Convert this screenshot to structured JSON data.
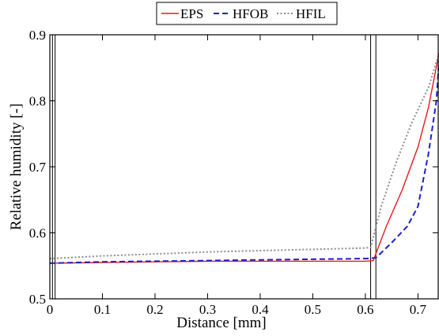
{
  "chart_data": {
    "type": "line",
    "title": "",
    "xlabel": "Distance [mm]",
    "ylabel": "Relative humidity [-]",
    "xlim": [
      0,
      0.74
    ],
    "ylim": [
      0.5,
      0.9
    ],
    "xticks": [
      0,
      0.1,
      0.2,
      0.3,
      0.4,
      0.5,
      0.6,
      0.7
    ],
    "xtick_labels": [
      "0",
      "0.1",
      "0.2",
      "0.3",
      "0.4",
      "0.5",
      "0.6",
      "0.7"
    ],
    "yticks": [
      0.5,
      0.6,
      0.7,
      0.8,
      0.9
    ],
    "ytick_labels": [
      "0.5",
      "0.6",
      "0.7",
      "0.8",
      "0.9"
    ],
    "grid": false,
    "legend_position": "top-center",
    "vertical_lines": [
      0.005,
      0.01,
      0.61,
      0.62
    ],
    "series": [
      {
        "name": "EPS",
        "color": "#e8191f",
        "style": "solid",
        "x": [
          0,
          0.1,
          0.2,
          0.3,
          0.4,
          0.5,
          0.6,
          0.615,
          0.64,
          0.67,
          0.7,
          0.72,
          0.74
        ],
        "y": [
          0.554,
          0.555,
          0.556,
          0.557,
          0.557,
          0.557,
          0.557,
          0.558,
          0.61,
          0.665,
          0.73,
          0.79,
          0.872
        ]
      },
      {
        "name": "HFOB",
        "color": "#1f1fc8",
        "style": "dashed",
        "x": [
          0,
          0.1,
          0.2,
          0.3,
          0.4,
          0.5,
          0.6,
          0.62,
          0.65,
          0.68,
          0.7,
          0.72,
          0.735,
          0.74
        ],
        "y": [
          0.554,
          0.556,
          0.557,
          0.558,
          0.559,
          0.56,
          0.561,
          0.562,
          0.585,
          0.61,
          0.64,
          0.72,
          0.8,
          0.86
        ]
      },
      {
        "name": "HFIL",
        "color": "#8c8c8c",
        "style": "dotted",
        "x": [
          0,
          0.1,
          0.2,
          0.3,
          0.4,
          0.5,
          0.6,
          0.61,
          0.63,
          0.66,
          0.69,
          0.72,
          0.74
        ],
        "y": [
          0.561,
          0.565,
          0.568,
          0.571,
          0.573,
          0.575,
          0.577,
          0.578,
          0.64,
          0.71,
          0.77,
          0.82,
          0.872
        ]
      }
    ]
  }
}
